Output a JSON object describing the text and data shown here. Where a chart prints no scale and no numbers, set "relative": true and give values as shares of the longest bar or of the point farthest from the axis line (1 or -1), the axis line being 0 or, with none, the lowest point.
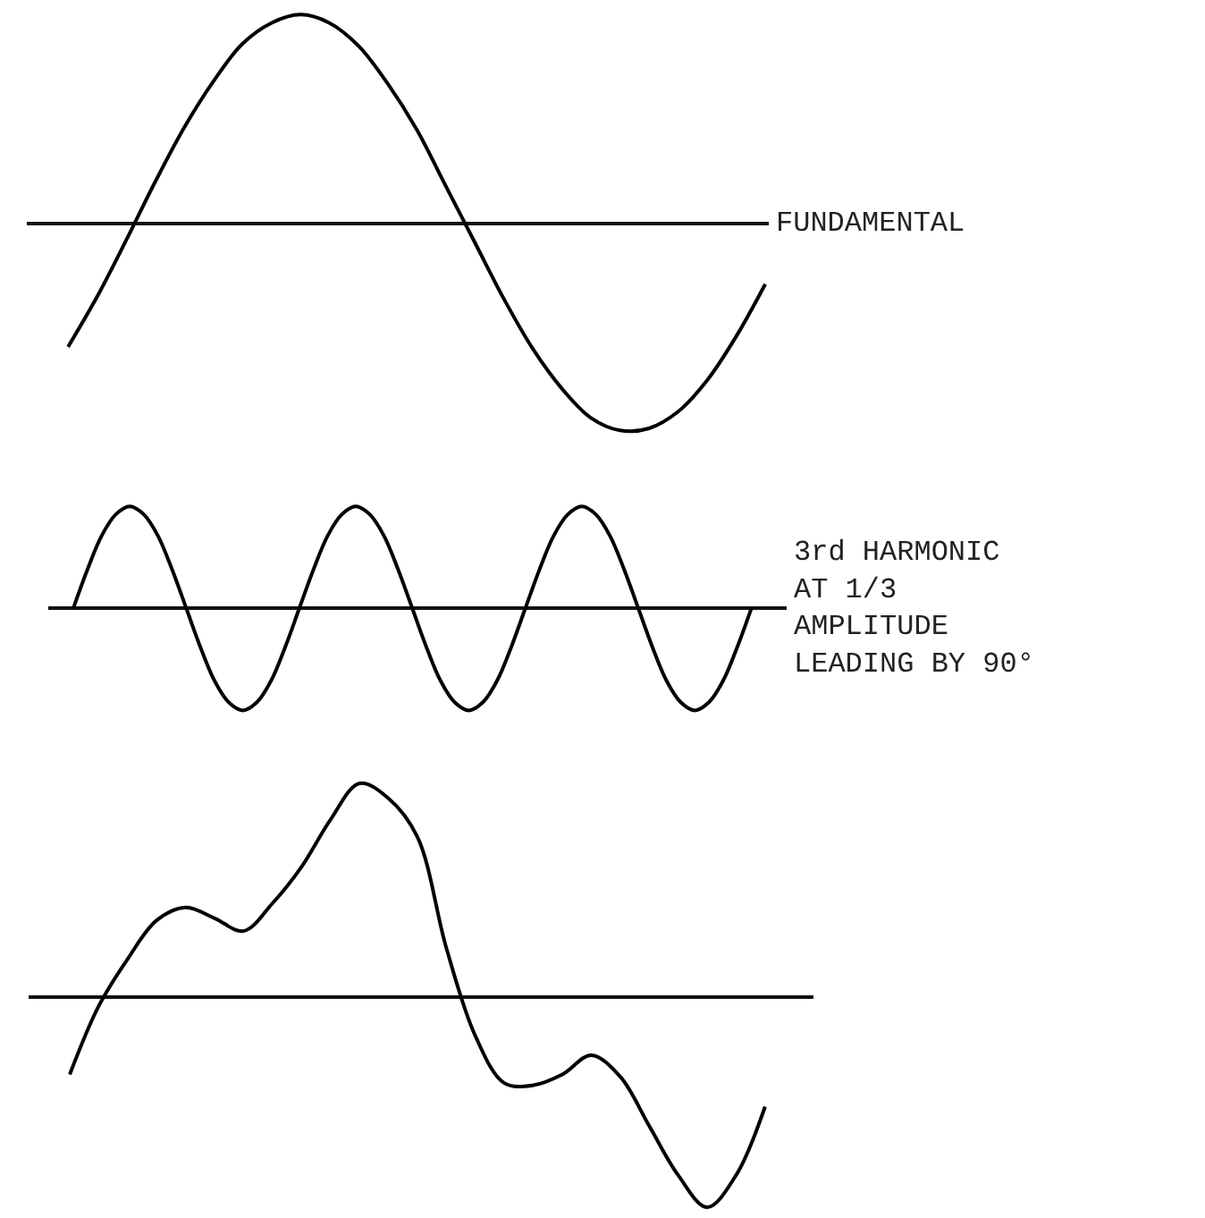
{
  "chart_data": [
    {
      "type": "line",
      "relative": true,
      "categories": [
        null,
        null,
        null,
        null,
        null,
        null,
        null,
        null,
        null,
        null,
        null,
        null,
        null,
        null,
        null,
        null,
        null,
        null,
        null,
        null,
        null,
        null,
        null,
        null,
        null
      ],
      "series": [
        {
          "color": "#000000",
          "values": [
            -0.59,
            -0.35,
            -0.08,
            0.2,
            0.46,
            0.68,
            0.86,
            0.96,
            1,
            0.96,
            0.85,
            0.67,
            0.45,
            0.18,
            -0.09,
            -0.36,
            -0.6,
            -0.79,
            -0.93,
            -0.99,
            -0.98,
            -0.9,
            -0.75,
            -0.54,
            -0.29
          ]
        }
      ],
      "annotations": [
        "FUNDAMENTAL"
      ]
    },
    {
      "type": "line",
      "relative": true,
      "categories": [
        null,
        null,
        null,
        null,
        null,
        null,
        null,
        null,
        null,
        null,
        null,
        null,
        null,
        null,
        null,
        null,
        null,
        null,
        null,
        null,
        null,
        null,
        null,
        null,
        null,
        null,
        null,
        null,
        null,
        null,
        null,
        null,
        null,
        null,
        null,
        null,
        null,
        null,
        null,
        null,
        null,
        null,
        null,
        null,
        null,
        null,
        null,
        null,
        null
      ],
      "series": [
        {
          "color": "#000000",
          "values": [
            0,
            0.38,
            0.71,
            0.92,
            1,
            0.92,
            0.71,
            0.38,
            0,
            -0.38,
            -0.71,
            -0.92,
            -1,
            -0.92,
            -0.71,
            -0.38,
            0,
            0.38,
            0.71,
            0.92,
            1,
            0.92,
            0.71,
            0.38,
            0,
            -0.38,
            -0.71,
            -0.92,
            -1,
            -0.92,
            -0.71,
            -0.38,
            0,
            0.38,
            0.71,
            0.92,
            1,
            0.92,
            0.71,
            0.38,
            0,
            -0.38,
            -0.71,
            -0.92,
            -1,
            -0.92,
            -0.71,
            -0.38,
            0
          ]
        }
      ],
      "annotations": [
        "3rd HARMONIC AT 1/3 AMPLITUDE LEADING BY 90°"
      ]
    },
    {
      "type": "line",
      "relative": true,
      "categories": [
        null,
        null,
        null,
        null,
        null,
        null,
        null,
        null,
        null,
        null,
        null,
        null,
        null,
        null,
        null,
        null,
        null,
        null,
        null,
        null,
        null,
        null,
        null,
        null,
        null
      ],
      "series": [
        {
          "color": "#000000",
          "values": [
            -0.36,
            -0.04,
            0.18,
            0.36,
            0.42,
            0.37,
            0.31,
            0.44,
            0.61,
            0.83,
            1,
            0.93,
            0.75,
            0.23,
            -0.18,
            -0.4,
            -0.41,
            -0.36,
            -0.27,
            -0.37,
            -0.6,
            -0.83,
            -0.98,
            -0.83,
            -0.51
          ]
        }
      ]
    }
  ]
}
